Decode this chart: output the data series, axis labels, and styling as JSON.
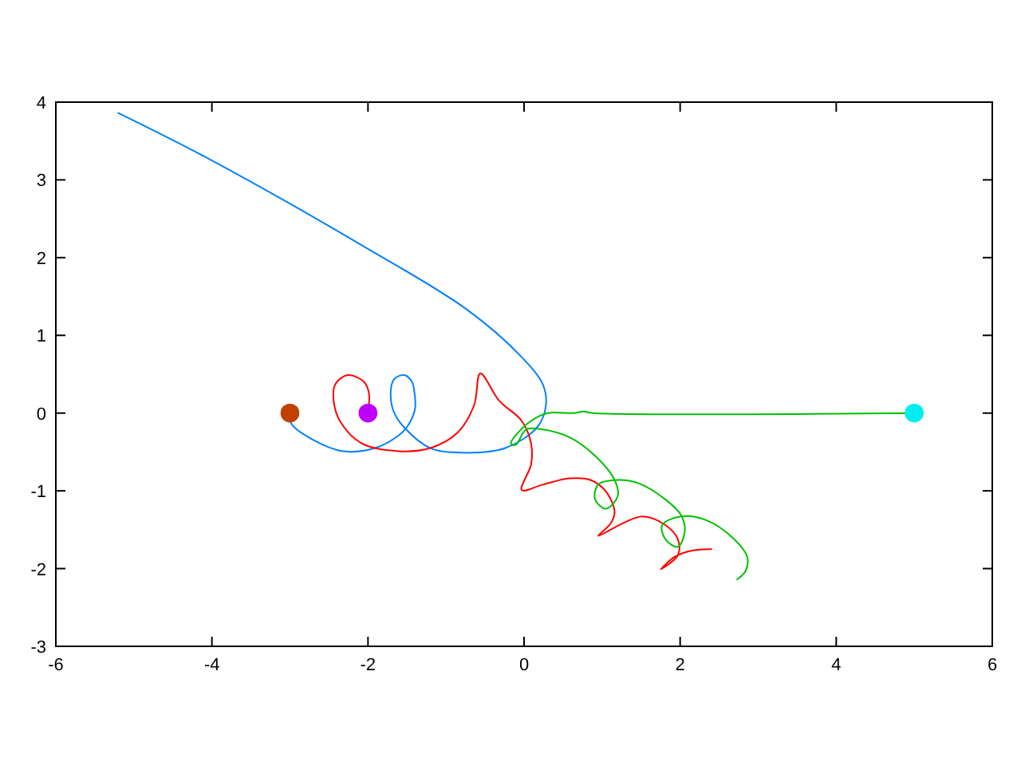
{
  "chart_data": {
    "type": "line",
    "xlim": [
      -6,
      6
    ],
    "ylim": [
      -3,
      4
    ],
    "xticks": [
      -6,
      -4,
      -2,
      0,
      2,
      4,
      6
    ],
    "yticks": [
      -3,
      -2,
      -1,
      0,
      1,
      2,
      3,
      4
    ],
    "grid": false,
    "series": [
      {
        "color": "#0080ff",
        "marker": "none",
        "x": [
          -3.0,
          -2.98,
          -2.73,
          -2.32,
          -1.91,
          -1.61,
          -1.5,
          -1.4,
          -1.4,
          -1.44,
          -1.54,
          -1.67,
          -1.71,
          -1.67,
          -1.54,
          -1.2,
          -0.73,
          -0.24,
          0.17,
          0.28,
          0.24,
          -0.03,
          -0.73,
          -2.08,
          -4.02,
          -5.2
        ],
        "values": [
          0.0,
          -0.14,
          -0.33,
          -0.49,
          -0.45,
          -0.29,
          -0.18,
          0.04,
          0.23,
          0.41,
          0.49,
          0.43,
          0.23,
          0.02,
          -0.18,
          -0.45,
          -0.51,
          -0.45,
          -0.18,
          0.1,
          0.37,
          0.72,
          1.33,
          2.16,
          3.26,
          3.86
        ]
      },
      {
        "color": "#ff0000",
        "marker": "none",
        "x": [
          -2.0,
          -1.99,
          -2.06,
          -2.26,
          -2.42,
          -2.44,
          -2.36,
          -2.08,
          -1.61,
          -1.2,
          -0.85,
          -0.64,
          -0.56,
          -0.32,
          -0.03,
          0.09,
          0.09,
          -0.03,
          0.24,
          0.58,
          0.85,
          1.05,
          1.16,
          1.11,
          0.95,
          1.26,
          1.52,
          1.81,
          1.97,
          1.97,
          1.75,
          1.93,
          2.14,
          2.4
        ],
        "values": [
          0.0,
          0.27,
          0.41,
          0.49,
          0.37,
          0.16,
          -0.1,
          -0.39,
          -0.49,
          -0.45,
          -0.25,
          0.1,
          0.51,
          0.16,
          -0.1,
          -0.39,
          -0.66,
          -0.99,
          -0.92,
          -0.84,
          -0.86,
          -1.01,
          -1.27,
          -1.42,
          -1.58,
          -1.42,
          -1.33,
          -1.44,
          -1.62,
          -1.83,
          -2.01,
          -1.85,
          -1.77,
          -1.75
        ]
      },
      {
        "color": "#00c000",
        "marker": "none",
        "x": [
          5.0,
          0.89,
          0.75,
          0.64,
          0.3,
          0.09,
          -0.11,
          -0.17,
          -0.11,
          0.03,
          0.24,
          0.58,
          0.91,
          1.16,
          1.2,
          1.05,
          0.91,
          0.95,
          1.2,
          1.46,
          1.81,
          2.01,
          2.06,
          1.97,
          1.81,
          1.77,
          2.01,
          2.34,
          2.69,
          2.86,
          2.84,
          2.73
        ],
        "values": [
          0.0,
          0.0,
          0.02,
          0.0,
          0.0,
          -0.1,
          -0.29,
          -0.39,
          -0.41,
          -0.21,
          -0.21,
          -0.31,
          -0.55,
          -0.86,
          -1.07,
          -1.23,
          -1.11,
          -0.92,
          -0.86,
          -0.9,
          -1.11,
          -1.31,
          -1.52,
          -1.72,
          -1.62,
          -1.44,
          -1.33,
          -1.38,
          -1.62,
          -1.85,
          -2.03,
          -2.14
        ]
      },
      {
        "type": "scatter",
        "color": "#c04000",
        "marker": "circle",
        "x": [
          -3.0
        ],
        "values": [
          0.0
        ]
      },
      {
        "type": "scatter",
        "color": "#c000ff",
        "marker": "circle",
        "x": [
          -2.0
        ],
        "values": [
          0.0
        ]
      },
      {
        "type": "scatter",
        "color": "#00eeee",
        "marker": "circle",
        "x": [
          5.0
        ],
        "values": [
          0.0
        ]
      }
    ]
  }
}
